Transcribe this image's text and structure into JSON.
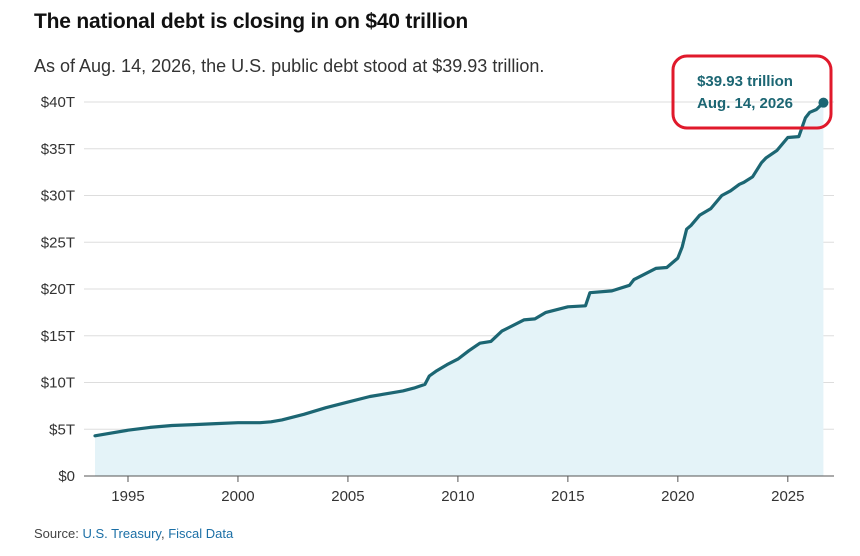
{
  "title": "The national debt is closing in on $40 trillion",
  "subtitle": "As of Aug. 14, 2026, the U.S. public debt stood at $39.93 trillion.",
  "source": {
    "label": "Source:",
    "links": [
      "U.S. Treasury",
      "Fiscal Data"
    ],
    "separator": ", "
  },
  "colors": {
    "line": "#1c6673",
    "area": "#e4f3f8",
    "grid": "#dddddd",
    "highlight": "#e0192b"
  },
  "chart_data": {
    "type": "area",
    "title": "The national debt is closing in on $40 trillion",
    "xlabel": "",
    "ylabel": "",
    "xlim": [
      1993.0,
      2027.1
    ],
    "ylim": [
      0,
      40
    ],
    "y_ticks": [
      {
        "value": 0,
        "label": "$0"
      },
      {
        "value": 5,
        "label": "$5T"
      },
      {
        "value": 10,
        "label": "$10T"
      },
      {
        "value": 15,
        "label": "$15T"
      },
      {
        "value": 20,
        "label": "$20T"
      },
      {
        "value": 25,
        "label": "$25T"
      },
      {
        "value": 30,
        "label": "$30T"
      },
      {
        "value": 35,
        "label": "$35T"
      },
      {
        "value": 40,
        "label": "$40T"
      }
    ],
    "x_ticks": [
      {
        "value": 1995,
        "label": "1995"
      },
      {
        "value": 2000,
        "label": "2000"
      },
      {
        "value": 2005,
        "label": "2005"
      },
      {
        "value": 2010,
        "label": "2010"
      },
      {
        "value": 2015,
        "label": "2015"
      },
      {
        "value": 2020,
        "label": "2020"
      },
      {
        "value": 2025,
        "label": "2025"
      }
    ],
    "grid": true,
    "series": [
      {
        "x": [
          1993.5,
          1994.0,
          1995.0,
          1996.0,
          1997.0,
          1998.0,
          1999.0,
          2000.0,
          2000.5,
          2001.0,
          2001.5,
          2002.0,
          2003.0,
          2004.0,
          2005.0,
          2006.0,
          2007.0,
          2007.5,
          2008.0,
          2008.5,
          2008.7,
          2009.0,
          2009.5,
          2010.0,
          2010.5,
          2011.0,
          2011.5,
          2012.0,
          2013.0,
          2013.5,
          2014.0,
          2015.0,
          2015.8,
          2016.0,
          2017.0,
          2017.8,
          2018.0,
          2019.0,
          2019.5,
          2020.0,
          2020.2,
          2020.4,
          2020.6,
          2021.0,
          2021.5,
          2022.0,
          2022.4,
          2022.8,
          2023.0,
          2023.4,
          2023.8,
          2024.0,
          2024.5,
          2025.0,
          2025.5,
          2025.8,
          2026.0,
          2026.3,
          2026.62
        ],
        "values": [
          4.3,
          4.5,
          4.9,
          5.2,
          5.4,
          5.5,
          5.6,
          5.7,
          5.7,
          5.7,
          5.8,
          6.0,
          6.6,
          7.3,
          7.9,
          8.5,
          8.9,
          9.1,
          9.4,
          9.8,
          10.7,
          11.2,
          11.9,
          12.5,
          13.4,
          14.2,
          14.4,
          15.5,
          16.7,
          16.8,
          17.5,
          18.1,
          18.2,
          19.6,
          19.8,
          20.4,
          21.0,
          22.2,
          22.3,
          23.3,
          24.5,
          26.4,
          26.8,
          27.9,
          28.6,
          30.0,
          30.5,
          31.2,
          31.4,
          32.0,
          33.5,
          34.0,
          34.8,
          36.2,
          36.3,
          38.3,
          38.9,
          39.2,
          39.93
        ]
      }
    ],
    "annotation": {
      "x": 2026.62,
      "y": 39.93,
      "line1": "$39.93 trillion",
      "line2": "Aug. 14, 2026"
    }
  }
}
